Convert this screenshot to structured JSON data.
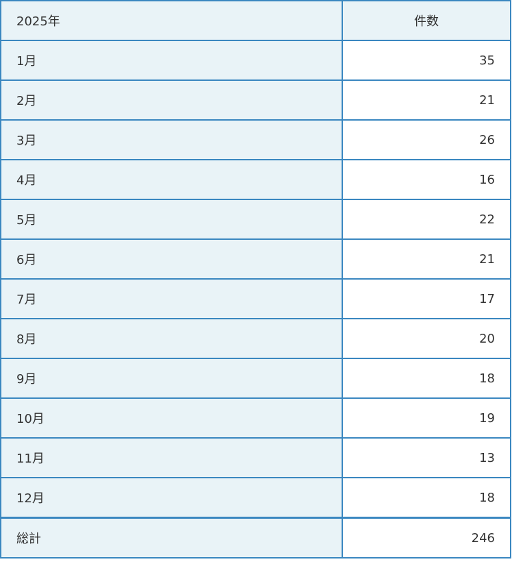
{
  "table": {
    "header": {
      "year": "2025年",
      "count": "件数"
    },
    "rows": [
      {
        "month": "1月",
        "count": "35"
      },
      {
        "month": "2月",
        "count": "21"
      },
      {
        "month": "3月",
        "count": "26"
      },
      {
        "month": "4月",
        "count": "16"
      },
      {
        "month": "5月",
        "count": "22"
      },
      {
        "month": "6月",
        "count": "21"
      },
      {
        "month": "7月",
        "count": "17"
      },
      {
        "month": "8月",
        "count": "20"
      },
      {
        "month": "9月",
        "count": "18"
      },
      {
        "month": "10月",
        "count": "19"
      },
      {
        "month": "11月",
        "count": "13"
      },
      {
        "month": "12月",
        "count": "18"
      }
    ],
    "total": {
      "label": "総計",
      "count": "246"
    }
  },
  "colors": {
    "border": "#3a87c0",
    "label_bg": "#e9f3f7",
    "value_bg": "#ffffff"
  }
}
